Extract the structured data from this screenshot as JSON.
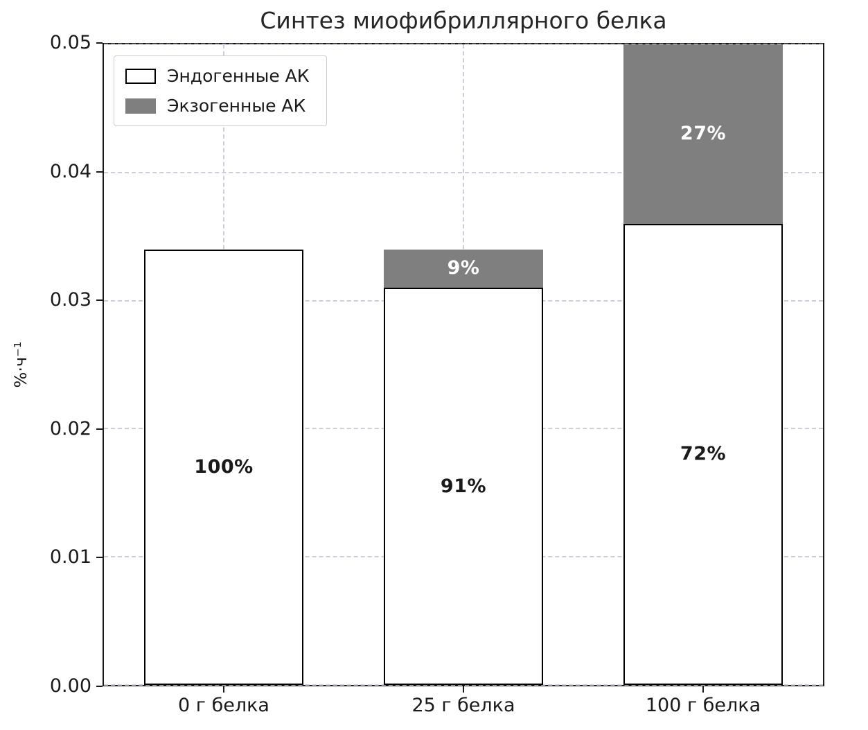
{
  "chart_data": {
    "type": "bar",
    "stacked": true,
    "title": "Синтез миофибриллярного белка",
    "ylabel": "%·ч⁻¹",
    "xlabel": "",
    "categories": [
      "0 г белка",
      "25 г белка",
      "100 г белка"
    ],
    "series": [
      {
        "name": "Эндогенные АК",
        "color": "#ffffff",
        "edgecolor": "#000000",
        "values": [
          0.034,
          0.031,
          0.036
        ],
        "bar_labels": [
          "100%",
          "91%",
          "72%"
        ],
        "label_color": "#1a1a1a"
      },
      {
        "name": "Экзогенные АК",
        "color": "#7f7f7f",
        "edgecolor": null,
        "values": [
          0,
          0.003,
          0.014
        ],
        "bar_labels": [
          "",
          "9%",
          "27%"
        ],
        "label_color": "#ffffff"
      }
    ],
    "ylim": [
      0,
      0.05
    ],
    "yticks": [
      "0.00",
      "0.01",
      "0.02",
      "0.03",
      "0.04",
      "0.05"
    ],
    "grid": true,
    "grid_style": "dashed",
    "legend_position": "upper left"
  }
}
